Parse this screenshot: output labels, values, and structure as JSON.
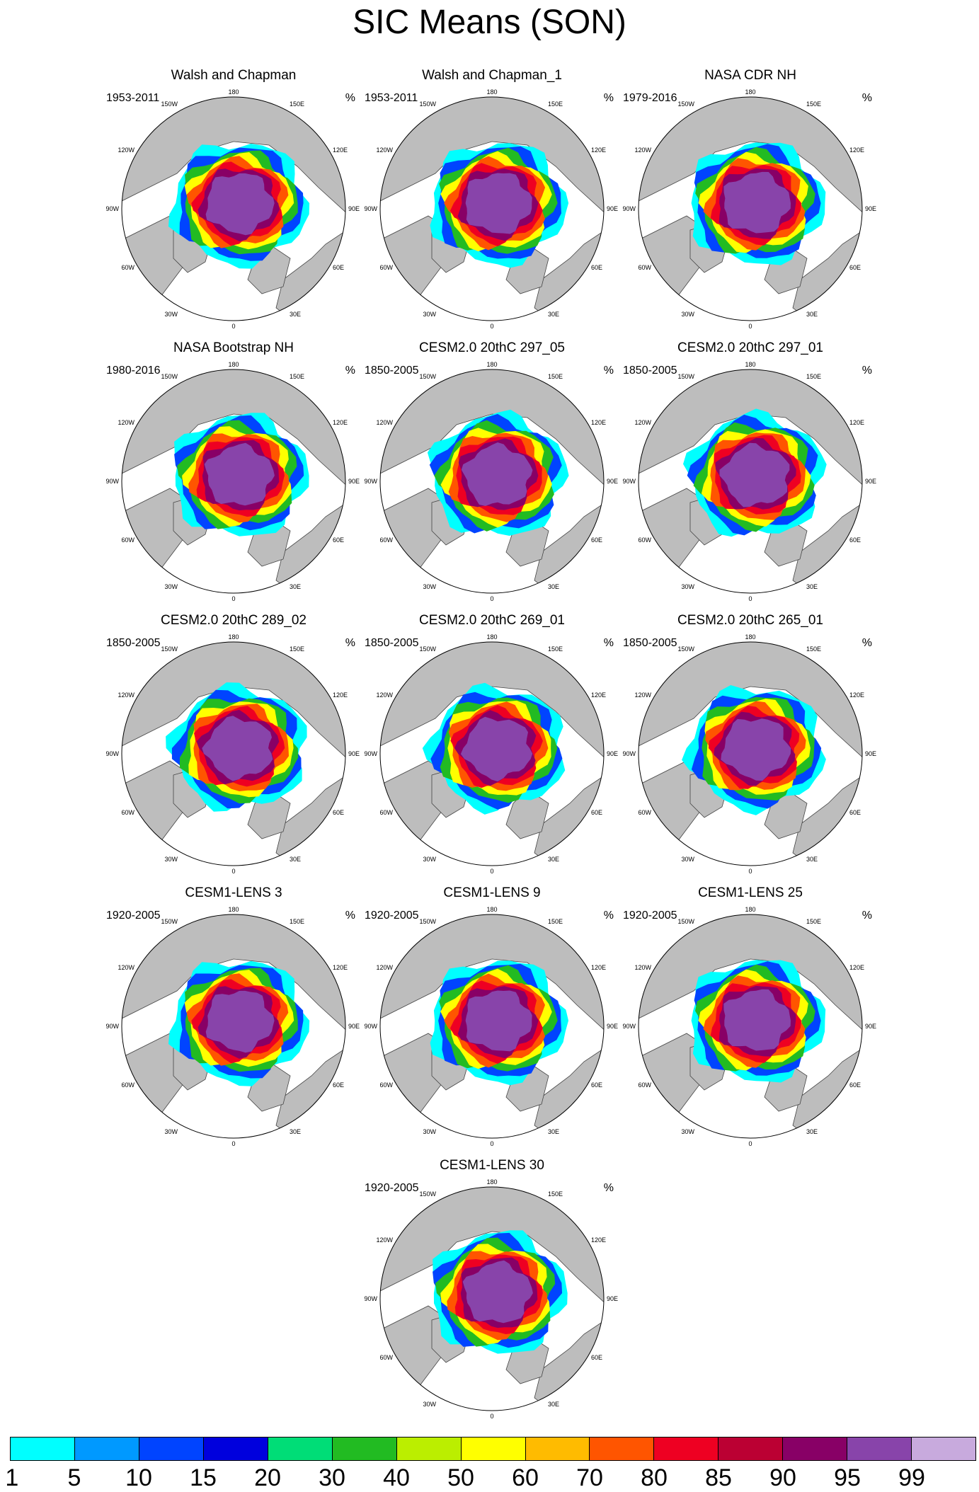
{
  "title": "SIC Means (SON)",
  "units": "%",
  "colors": {
    "land": "#bdbdbd",
    "ocean": "#ffffff",
    "coast": "#444444"
  },
  "map_labels": {
    "top": "180",
    "bottom": "0",
    "left": "90W",
    "right": "90E",
    "upper_left_a": "150W",
    "upper_left_b": "120W",
    "upper_right_a": "150E",
    "upper_right_b": "120E",
    "lower_left_a": "60W",
    "lower_left_b": "30W",
    "lower_right_a": "60E",
    "lower_right_b": "30E"
  },
  "panels": [
    {
      "title": "Walsh and Chapman",
      "years": "1953-2011"
    },
    {
      "title": "Walsh and Chapman_1",
      "years": "1953-2011"
    },
    {
      "title": "NASA CDR NH",
      "years": "1979-2016"
    },
    {
      "title": "NASA Bootstrap NH",
      "years": "1980-2016"
    },
    {
      "title": "CESM2.0 20thC 297_05",
      "years": "1850-2005"
    },
    {
      "title": "CESM2.0 20thC 297_01",
      "years": "1850-2005"
    },
    {
      "title": "CESM2.0 20thC 289_02",
      "years": "1850-2005"
    },
    {
      "title": "CESM2.0 20thC 269_01",
      "years": "1850-2005"
    },
    {
      "title": "CESM2.0 20thC 265_01",
      "years": "1850-2005"
    },
    {
      "title": "CESM1-LENS 3",
      "years": "1920-2005"
    },
    {
      "title": "CESM1-LENS 9",
      "years": "1920-2005"
    },
    {
      "title": "CESM1-LENS 25",
      "years": "1920-2005"
    },
    {
      "title": "CESM1-LENS 30",
      "years": "1920-2005"
    }
  ],
  "colorbar": {
    "labels": [
      "1",
      "5",
      "10",
      "15",
      "20",
      "30",
      "40",
      "50",
      "60",
      "70",
      "80",
      "85",
      "90",
      "95",
      "99"
    ],
    "colors": [
      "#00ffff",
      "#0099ff",
      "#0044ff",
      "#0000dd",
      "#00dd77",
      "#22bb22",
      "#bbee00",
      "#ffff00",
      "#ffbb00",
      "#ff5500",
      "#ee0022",
      "#bb0033",
      "#880066",
      "#8844aa",
      "#c8aadd"
    ]
  }
}
